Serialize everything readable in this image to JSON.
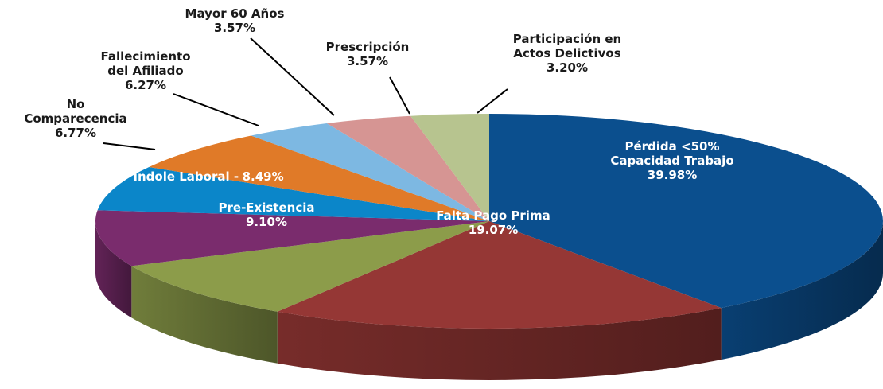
{
  "chart_data": {
    "type": "pie",
    "categories": [
      "Pérdida <50%\nCapacidad Trabajo",
      "Falta Pago Prima",
      "Pre-Existencia",
      "Indole Laboral -",
      "No\nComparecencia",
      "Fallecimiento\ndel Afiliado",
      "Mayor 60 Años",
      "Prescripción",
      "Participación en\nActos Delictivos"
    ],
    "values": [
      39.98,
      19.07,
      9.1,
      8.49,
      6.77,
      6.27,
      3.57,
      3.57,
      3.2
    ],
    "value_labels": [
      "39.98%",
      "19.07%",
      "9.10%",
      "8.49%",
      "6.77%",
      "6.27%",
      "3.57%",
      "3.57%",
      "3.20%"
    ],
    "colors": [
      "#0b4f8e",
      "#953735",
      "#8c9c4a",
      "#7a2c6d",
      "#0b86c9",
      "#e07a28",
      "#7db8e2",
      "#d69593",
      "#b7c48f"
    ]
  }
}
